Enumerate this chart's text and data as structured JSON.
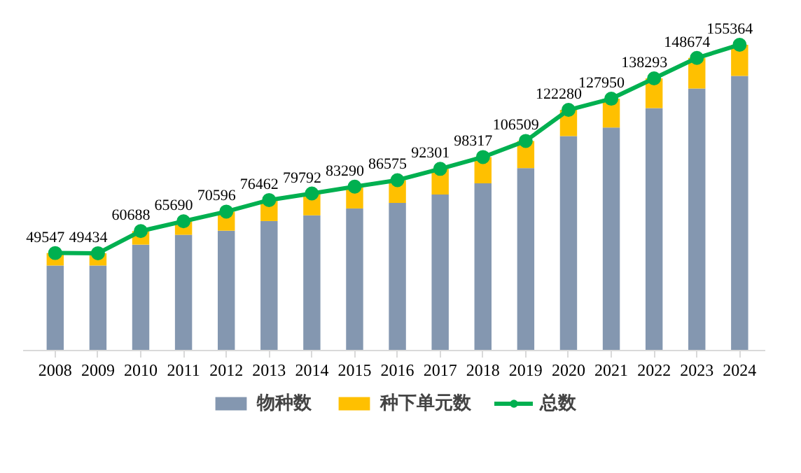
{
  "chart_data": {
    "type": "bar",
    "stacked": true,
    "tick_labels": "x",
    "legend": "bottom",
    "grid": false,
    "categories": [
      "2008",
      "2009",
      "2010",
      "2011",
      "2012",
      "2013",
      "2014",
      "2015",
      "2016",
      "2017",
      "2018",
      "2019",
      "2020",
      "2021",
      "2022",
      "2023",
      "2024"
    ],
    "series": [
      {
        "name": "物种数",
        "color": "#8497b0",
        "values": [
          43200,
          43200,
          53800,
          58800,
          60900,
          65800,
          68700,
          72200,
          75000,
          79300,
          85000,
          92700,
          109000,
          113300,
          123200,
          133100,
          139500
        ]
      },
      {
        "name": "种下单元数",
        "color": "#ffc000",
        "values": [
          6347,
          6234,
          6888,
          6890,
          9696,
          10662,
          11092,
          11090,
          11575,
          13001,
          13317,
          13809,
          13280,
          14650,
          15093,
          15574,
          15864
        ]
      },
      {
        "name": "总数",
        "type": "line",
        "color": "#00b050",
        "marker": "circle",
        "data_labels": true,
        "values": [
          49547,
          49434,
          60688,
          65690,
          70596,
          76462,
          79792,
          83290,
          86575,
          92301,
          98317,
          106509,
          122280,
          127950,
          138293,
          148674,
          155364
        ]
      }
    ]
  }
}
